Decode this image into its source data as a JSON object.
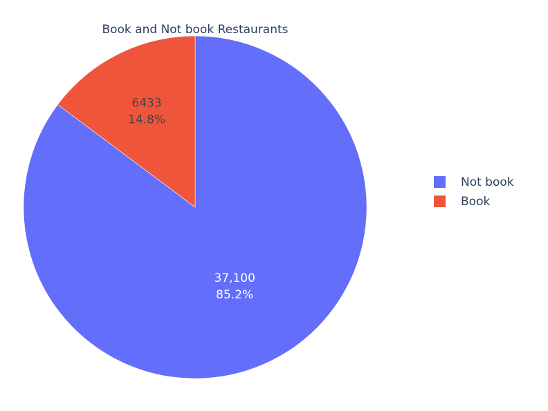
{
  "chart_data": {
    "type": "pie",
    "title": "Book and Not book Restaurants",
    "labels": [
      "Not book",
      "Book"
    ],
    "values": [
      37100,
      6433
    ],
    "value_labels": [
      "37,100",
      "6433"
    ],
    "percent_labels": [
      "85.2%",
      "14.8%"
    ],
    "colors": [
      "#636efa",
      "#ef553b"
    ],
    "label_colors": [
      "#ffffff",
      "#444444"
    ],
    "direction": "clockwise",
    "start_angle": "top",
    "legend_position": "right"
  }
}
